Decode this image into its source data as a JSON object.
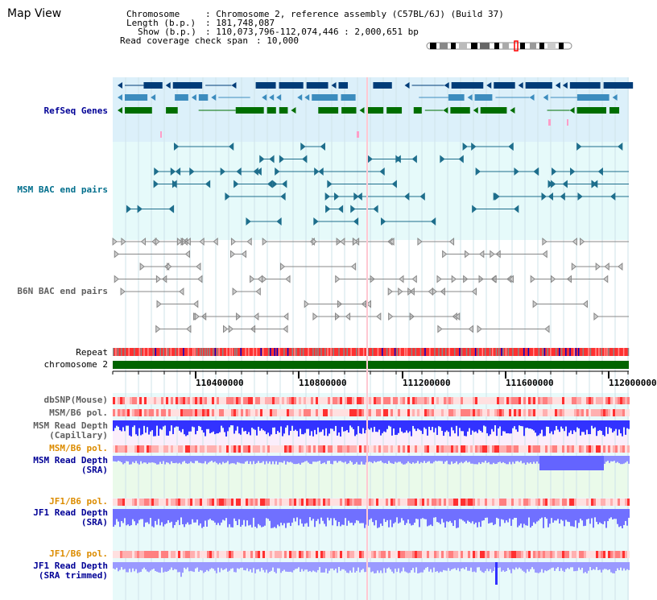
{
  "page": {
    "title": "Map View"
  },
  "info": {
    "chromosome_label": "Chromosome",
    "chromosome_value": ": Chromosome 2, reference assembly (C57BL/6J) (Build 37)",
    "length_label": "Length (b.p.)",
    "length_value": ": 181,748,087",
    "show_label": "Show (b.p.)",
    "show_value": ": 110,073,796-112,074,446 : 2,000,651 bp",
    "coverage_label": "Read coverage check span",
    "coverage_value": ": 10,000"
  },
  "tracks": {
    "refseq": "RefSeq Genes",
    "msm_bac": "MSM BAC end pairs",
    "b6n_bac": "B6N BAC end pairs",
    "repeat": "Repeat",
    "chromosome": "chromosome 2",
    "dbsnp": "dbSNP(Mouse)",
    "msm_b6_pol_1": "MSM/B6 pol.",
    "msm_read_depth_cap_1": "MSM Read Depth",
    "msm_read_depth_cap_2": "(Capillary)",
    "msm_b6_pol_2": "MSM/B6 pol.",
    "msm_read_depth_sra_1": "MSM Read Depth",
    "msm_read_depth_sra_2": "(SRA)",
    "jf1_b6_pol_1": "JF1/B6 pol.",
    "jf1_read_depth_sra_1": "JF1 Read Depth",
    "jf1_read_depth_sra_2": "(SRA)",
    "jf1_b6_pol_2": "JF1/B6 pol.",
    "jf1_read_depth_trim_1": "JF1 Read Depth",
    "jf1_read_depth_trim_2": "(SRA trimmed)"
  },
  "axis": {
    "ticks": [
      "110400000",
      "110800000",
      "111200000",
      "111600000",
      "112000000"
    ]
  },
  "colors": {
    "refseq_bg": "#dcf0fa",
    "bac_bg": "#e6fafa",
    "msm_bac": "#1e6e8c",
    "gene_dark": "#003c78",
    "gene_mid": "#3c8cbe",
    "gene_green": "#006e00",
    "repeat_red": "#ff0000",
    "chrom_green": "#006400",
    "label_blue": "#000096",
    "label_orange": "#dc8c00",
    "label_teal": "#006e8c",
    "depth_blue": "#4646ff"
  }
}
